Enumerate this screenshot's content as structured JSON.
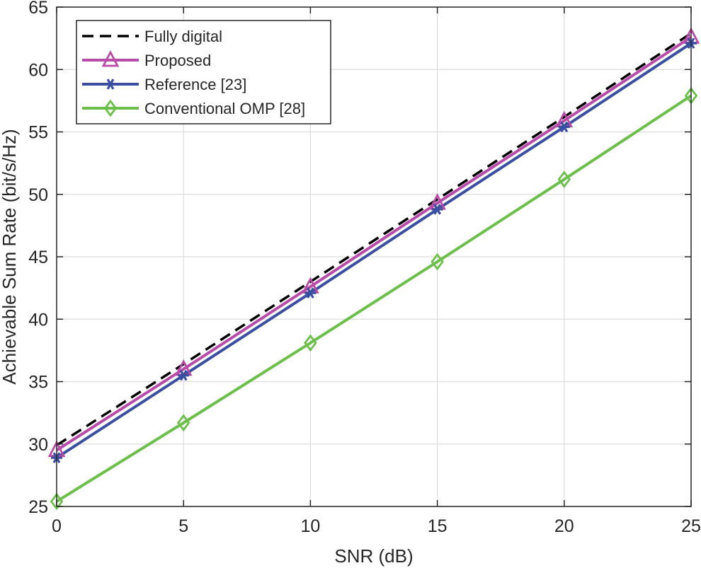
{
  "chart_data": {
    "type": "line",
    "title": "",
    "xlabel": "SNR (dB)",
    "ylabel": "Achievable Sum Rate (bit/s/Hz)",
    "xlim": [
      0,
      25
    ],
    "ylim": [
      25,
      65
    ],
    "xticks": [
      0,
      5,
      10,
      15,
      20,
      25
    ],
    "yticks": [
      25,
      30,
      35,
      40,
      45,
      50,
      55,
      60,
      65
    ],
    "grid": true,
    "legend_position": "top-left",
    "x": [
      0,
      5,
      10,
      15,
      20,
      25
    ],
    "series": [
      {
        "name": "Fully digital",
        "values": [
          29.9,
          36.4,
          43.0,
          49.6,
          56.2,
          62.9
        ],
        "color": "#000000",
        "dash": true,
        "marker": "none"
      },
      {
        "name": "Proposed",
        "values": [
          29.5,
          36.0,
          42.6,
          49.3,
          55.9,
          62.6
        ],
        "color": "#b84aa8",
        "dash": false,
        "marker": "triangle"
      },
      {
        "name": "Reference [23]",
        "values": [
          28.9,
          35.5,
          42.1,
          48.8,
          55.4,
          62.1
        ],
        "color": "#3a4fa0",
        "dash": false,
        "marker": "asterisk"
      },
      {
        "name": "Conventional OMP [28]",
        "values": [
          25.4,
          31.7,
          38.1,
          44.6,
          51.2,
          57.9
        ],
        "color": "#6cbf4a",
        "dash": false,
        "marker": "diamond"
      }
    ]
  }
}
